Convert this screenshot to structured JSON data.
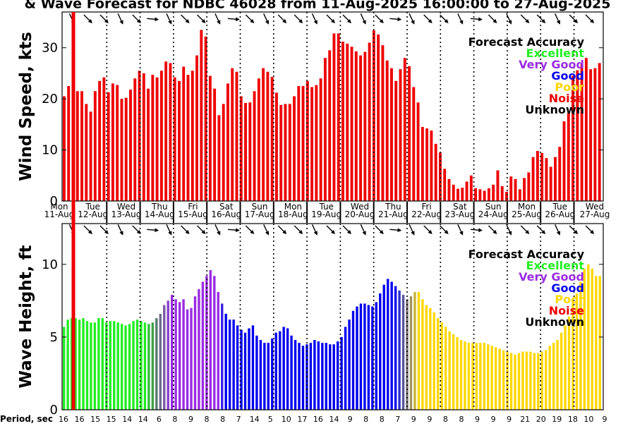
{
  "chart_data": {
    "type": "bar",
    "title": "& Wave Forecast for NDBC 46028 from 11-Aug-2025 16:00:00 to 27-Aug-2025",
    "day_labels": [
      {
        "dow": "Mon",
        "date": "11-Aug"
      },
      {
        "dow": "Tue",
        "date": "12-Aug"
      },
      {
        "dow": "Wed",
        "date": "13-Aug"
      },
      {
        "dow": "Thu",
        "date": "14-Aug"
      },
      {
        "dow": "Fri",
        "date": "15-Aug"
      },
      {
        "dow": "Sat",
        "date": "16-Aug"
      },
      {
        "dow": "Sun",
        "date": "17-Aug"
      },
      {
        "dow": "Mon",
        "date": "18-Aug"
      },
      {
        "dow": "Tue",
        "date": "19-Aug"
      },
      {
        "dow": "Wed",
        "date": "20-Aug"
      },
      {
        "dow": "Thu",
        "date": "21-Aug"
      },
      {
        "dow": "Fri",
        "date": "22-Aug"
      },
      {
        "dow": "Sat",
        "date": "23-Aug"
      },
      {
        "dow": "Sun",
        "date": "24-Aug"
      },
      {
        "dow": "Mon",
        "date": "25-Aug"
      },
      {
        "dow": "Tue",
        "date": "26-Aug"
      },
      {
        "dow": "Wed",
        "date": "27-Aug"
      }
    ],
    "legend": {
      "title": "Forecast Accuracy",
      "placement": "top-right",
      "entries": [
        {
          "label": "Excellent",
          "color": "#22ee22"
        },
        {
          "label": "Very Good",
          "color": "#9a2be2"
        },
        {
          "label": "Good",
          "color": "#0000ee"
        },
        {
          "label": "Poor",
          "color": "#ffd700"
        },
        {
          "label": "Noise",
          "color": "#ee0000"
        },
        {
          "label": "Unknown",
          "color": "#000000"
        }
      ]
    },
    "wind": {
      "ylabel": "Wind Speed, kts",
      "ylim": [
        0,
        37
      ],
      "yticks": [
        0,
        10,
        20,
        30
      ],
      "bar_color": "#ee0000",
      "values": [
        20.5,
        22.5,
        21,
        21.5,
        21.5,
        19,
        17.5,
        21.5,
        23.5,
        24.2,
        21.3,
        23,
        22.7,
        20,
        20.2,
        21.8,
        24,
        25.5,
        25,
        22,
        24.7,
        24.2,
        25.5,
        27.3,
        27,
        24.2,
        23.5,
        26.3,
        24.7,
        25.5,
        28.5,
        33.5,
        32.2,
        24.5,
        22,
        16.8,
        19,
        23,
        26,
        25.3,
        20.5,
        19.2,
        19.3,
        21.5,
        24,
        26,
        25.3,
        24.3,
        21.2,
        18.8,
        19,
        19,
        20.5,
        22.5,
        22.5,
        23.5,
        22.3,
        22.7,
        24,
        28,
        29.5,
        32.8,
        32.8,
        31.2,
        30.8,
        30.2,
        29.3,
        28.5,
        29.2,
        31,
        33.4,
        32.6,
        30.5,
        27.5,
        26,
        23.5,
        25.8,
        28,
        26.4,
        22.3,
        19.3,
        14.5,
        14.2,
        13.8,
        11.2,
        9.5,
        6.3,
        4.3,
        3.2,
        2.4,
        2.6,
        3.8,
        5,
        2.5,
        2.3,
        2,
        2.5,
        3.2,
        6,
        2.9,
        1.8,
        4.8,
        4.3,
        2.3,
        4.5,
        5.6,
        8.6,
        9.8,
        9.4,
        8.4,
        6.7,
        8.6,
        10.6,
        15.6,
        17.2,
        24.5,
        25.6,
        26.8,
        28,
        25.8,
        26,
        27
      ]
    },
    "wave": {
      "ylabel": "Wave Height, ft",
      "ylim": [
        0,
        12.8
      ],
      "yticks": [
        0,
        5,
        10
      ],
      "period_label": "Period, sec",
      "period_ticks": [
        "16",
        "16",
        "15",
        "15",
        "14",
        "14",
        "6",
        "8",
        "9",
        "8",
        "8",
        "7",
        "14",
        "5",
        "10",
        "17",
        "16",
        "14",
        "9",
        "8",
        "8",
        "7",
        "9",
        "9",
        "8",
        "8",
        "9",
        "9",
        "9",
        "21",
        "20",
        "19",
        "18",
        "10",
        "9"
      ],
      "values": [
        5.7,
        6.2,
        6.3,
        6.3,
        6.2,
        6.3,
        6.1,
        6,
        6,
        6.3,
        6.3,
        6,
        6.1,
        6.1,
        6,
        5.9,
        5.8,
        5.9,
        6.1,
        6.2,
        6.1,
        6,
        5.9,
        6,
        6.3,
        6.6,
        7.2,
        7.5,
        7.9,
        7.6,
        7.4,
        7.6,
        6.9,
        7,
        7.8,
        8.3,
        8.8,
        9.2,
        9.6,
        9.2,
        8.1,
        7.3,
        6.6,
        6.2,
        6.2,
        5.8,
        5.5,
        5.3,
        5.6,
        5.8,
        5.1,
        4.8,
        4.6,
        4.6,
        4.9,
        5.3,
        5.4,
        5.7,
        5.6,
        5.1,
        4.8,
        4.6,
        4.4,
        4.5,
        4.6,
        4.8,
        4.7,
        4.6,
        4.6,
        4.5,
        4.5,
        4.7,
        5,
        5.7,
        6.2,
        6.8,
        7.1,
        7.3,
        7.3,
        7.2,
        7.1,
        7.4,
        8,
        8.6,
        9,
        8.8,
        8.5,
        8.2,
        7.9,
        7.6,
        7.8,
        8.1,
        8.1,
        7.6,
        7.2,
        7,
        6.7,
        6.3,
        6,
        5.7,
        5.4,
        5.2,
        5,
        4.8,
        4.7,
        4.6,
        4.6,
        4.6,
        4.6,
        4.6,
        4.5,
        4.4,
        4.3,
        4.2,
        4.1,
        4,
        3.9,
        3.8,
        3.9,
        4,
        4,
        4,
        3.9,
        3.9,
        4,
        4.1,
        4.4,
        4.6,
        4.8,
        5.3,
        5.8,
        6.4,
        7.5,
        8,
        8.8,
        9.7,
        10,
        9.7,
        9.2,
        9.2
      ],
      "quality_colors": [
        "#22ee22",
        "#22ee22",
        "#22ee22",
        "#22ee22",
        "#22ee22",
        "#22ee22",
        "#22ee22",
        "#22ee22",
        "#22ee22",
        "#22ee22",
        "#22ee22",
        "#22ee22",
        "#22ee22",
        "#22ee22",
        "#22ee22",
        "#22ee22",
        "#22ee22",
        "#22ee22",
        "#22ee22",
        "#22ee22",
        "#22ee22",
        "#22ee22",
        "#2ebd36",
        "#3f9f4a",
        "#557b6e",
        "#6d6a8e",
        "#7a57a8",
        "#8640c8",
        "#9a2be2",
        "#9a2be2",
        "#9a2be2",
        "#9a2be2",
        "#9a2be2",
        "#9a2be2",
        "#9a2be2",
        "#9a2be2",
        "#9a2be2",
        "#9a2be2",
        "#9a2be2",
        "#9a2be2",
        "#9a2be2",
        "#3b1fe8",
        "#0000ee",
        "#0000ee",
        "#0000ee",
        "#0000ee",
        "#0000ee",
        "#0000ee",
        "#0000ee",
        "#0000ee",
        "#0000ee",
        "#0000ee",
        "#0000ee",
        "#0000ee",
        "#0000ee",
        "#0000ee",
        "#0000ee",
        "#0000ee",
        "#0000ee",
        "#0000ee",
        "#0000ee",
        "#0000ee",
        "#0000ee",
        "#0000ee",
        "#0000ee",
        "#0000ee",
        "#0000ee",
        "#0000ee",
        "#0000ee",
        "#0000ee",
        "#0000ee",
        "#0000ee",
        "#0000ee",
        "#0000ee",
        "#0000ee",
        "#0000ee",
        "#0000ee",
        "#0000ee",
        "#0000ee",
        "#0000ee",
        "#0000ee",
        "#0000ee",
        "#0000ee",
        "#0000ee",
        "#0000ee",
        "#0000ee",
        "#0000ee",
        "#2b2fcc",
        "#55549d",
        "#7a7478",
        "#a0935a",
        "#c8b23a",
        "#ffd700",
        "#ffd700",
        "#ffd700",
        "#ffd700",
        "#ffd700",
        "#ffd700",
        "#ffd700",
        "#ffd700",
        "#ffd700",
        "#ffd700",
        "#ffd700",
        "#ffd700",
        "#ffd700",
        "#ffd700",
        "#ffd700",
        "#ffd700",
        "#ffd700",
        "#ffd700",
        "#ffd700",
        "#ffd700",
        "#ffd700",
        "#ffd700",
        "#ffd700",
        "#ffd700",
        "#ffd700",
        "#ffd700",
        "#ffd700",
        "#ffd700",
        "#ffd700",
        "#ffd700",
        "#ffd700",
        "#ffd700",
        "#ffd700",
        "#ffd700",
        "#ffd700",
        "#ffd700",
        "#ffd700",
        "#ffd700",
        "#ffd700",
        "#ffd700",
        "#ffd700",
        "#ffd700",
        "#ffd700",
        "#ffd700",
        "#ffd700",
        "#ffd700",
        "#ffd700",
        "#ffd700"
      ]
    },
    "grid": "vertical dotted lines at midnight",
    "current_time_marker_color": "#ee0000"
  }
}
